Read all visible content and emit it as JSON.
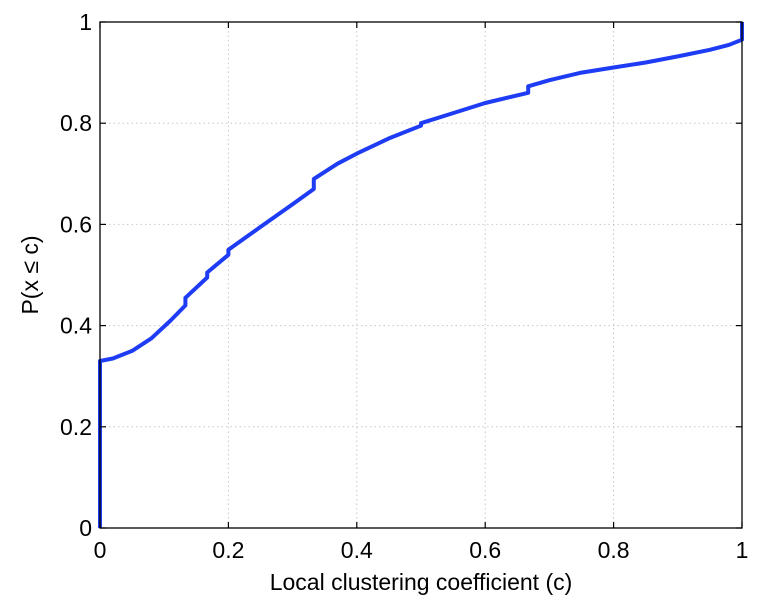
{
  "chart_data": {
    "type": "line",
    "title": "",
    "xlabel": "Local clustering coefficient (c)",
    "ylabel": "P(x ≤ c)",
    "xlim": [
      0,
      1
    ],
    "ylim": [
      0,
      1
    ],
    "xticks": [
      0,
      0.2,
      0.4,
      0.6,
      0.8,
      1
    ],
    "yticks": [
      0,
      0.2,
      0.4,
      0.6,
      0.8,
      1
    ],
    "xtick_labels": [
      "0",
      "0.2",
      "0.4",
      "0.6",
      "0.8",
      "1"
    ],
    "ytick_labels": [
      "0",
      "0.2",
      "0.4",
      "0.6",
      "0.8",
      "1"
    ],
    "grid": true,
    "legend": "none",
    "series": [
      {
        "color": "#1f3cf5",
        "x": [
          0,
          0,
          0.02,
          0.05,
          0.08,
          0.11,
          0.133,
          0.133,
          0.167,
          0.167,
          0.2,
          0.2,
          0.25,
          0.3,
          0.333,
          0.333,
          0.37,
          0.4,
          0.45,
          0.5,
          0.5,
          0.55,
          0.6,
          0.667,
          0.667,
          0.7,
          0.75,
          0.8,
          0.85,
          0.9,
          0.95,
          0.98,
          1.0,
          1.0
        ],
        "y": [
          0,
          0.33,
          0.335,
          0.35,
          0.375,
          0.41,
          0.44,
          0.455,
          0.495,
          0.505,
          0.54,
          0.55,
          0.595,
          0.64,
          0.67,
          0.69,
          0.72,
          0.74,
          0.77,
          0.795,
          0.8,
          0.82,
          0.84,
          0.86,
          0.873,
          0.885,
          0.9,
          0.91,
          0.92,
          0.932,
          0.945,
          0.955,
          0.965,
          1.0
        ]
      }
    ]
  }
}
